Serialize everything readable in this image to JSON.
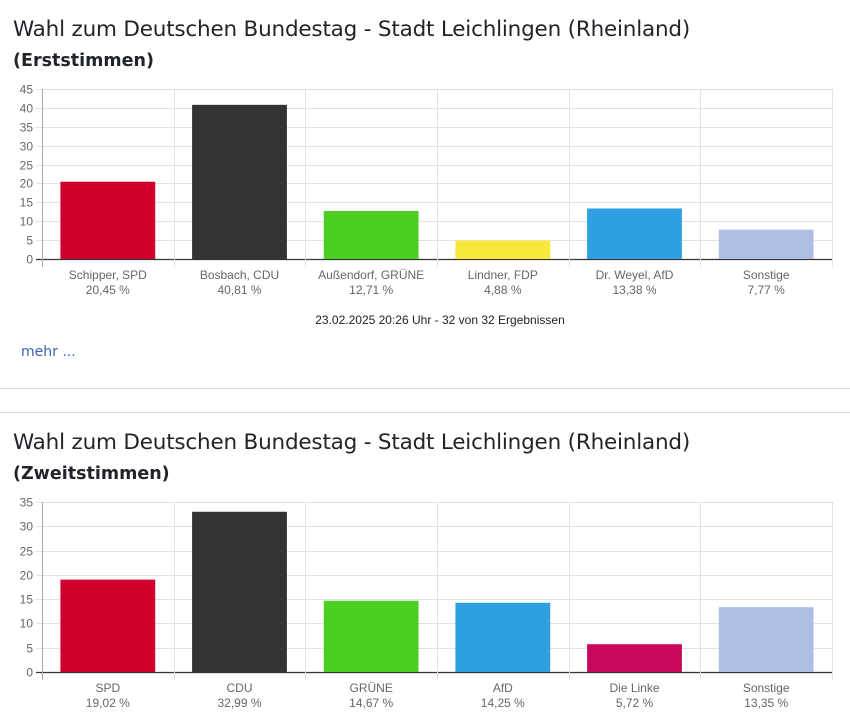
{
  "sections": [
    {
      "title": "Wahl zum Deutschen Bundestag - Stadt Leichlingen (Rheinland)",
      "subtitle": "(Erststimmen)",
      "footnote": "23.02.2025 20:26 Uhr - 32 von 32 Ergebnissen",
      "more_link": "mehr ..."
    },
    {
      "title": "Wahl zum Deutschen Bundestag - Stadt Leichlingen (Rheinland)",
      "subtitle": "(Zweitstimmen)"
    }
  ],
  "chart_data": [
    {
      "type": "bar",
      "title": "Wahl zum Deutschen Bundestag - Stadt Leichlingen (Rheinland) (Erststimmen)",
      "categories": [
        "Schipper, SPD",
        "Bosbach, CDU",
        "Außendorf, GRÜNE",
        "Lindner, FDP",
        "Dr. Weyel, AfD",
        "Sonstige"
      ],
      "values": [
        20.45,
        40.81,
        12.71,
        4.88,
        13.38,
        7.77
      ],
      "value_labels": [
        "20,45 %",
        "40,81 %",
        "12,71 %",
        "4,88 %",
        "13,38 %",
        "7,77 %"
      ],
      "colors": [
        "#d0002c",
        "#333333",
        "#4ccf22",
        "#f7e83c",
        "#2e9fe0",
        "#aebfe3"
      ],
      "yticks": [
        0,
        5,
        10,
        15,
        20,
        25,
        30,
        35,
        40,
        45
      ],
      "ylim": [
        0,
        45
      ],
      "xlabel": "",
      "ylabel": "",
      "grid": true,
      "legend": "none"
    },
    {
      "type": "bar",
      "title": "Wahl zum Deutschen Bundestag - Stadt Leichlingen (Rheinland) (Zweitstimmen)",
      "categories": [
        "SPD",
        "CDU",
        "GRÜNE",
        "AfD",
        "Die Linke",
        "Sonstige"
      ],
      "values": [
        19.02,
        32.99,
        14.67,
        14.25,
        5.72,
        13.35
      ],
      "value_labels": [
        "19,02 %",
        "32,99 %",
        "14,67 %",
        "14,25 %",
        "5,72 %",
        "13,35 %"
      ],
      "colors": [
        "#d0002c",
        "#333333",
        "#4ccf22",
        "#2e9fe0",
        "#c8085c",
        "#aebfe3"
      ],
      "yticks": [
        0,
        5,
        10,
        15,
        20,
        25,
        30,
        35
      ],
      "ylim": [
        0,
        35
      ],
      "xlabel": "",
      "ylabel": "",
      "grid": true,
      "legend": "none"
    }
  ]
}
